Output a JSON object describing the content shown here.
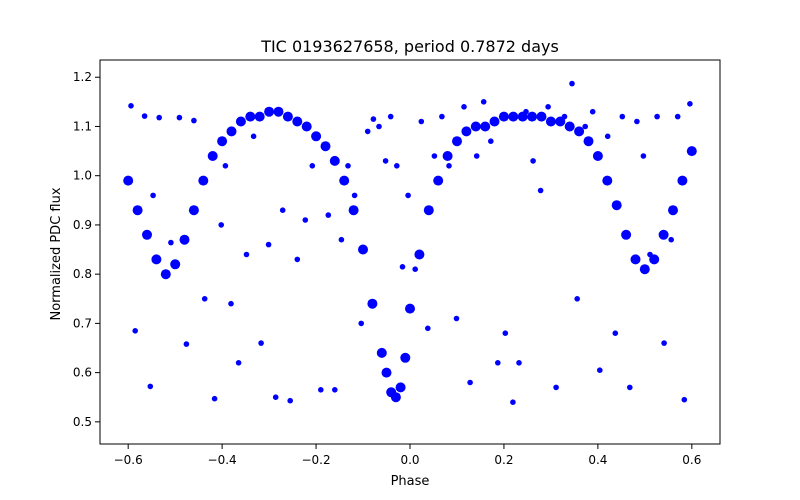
{
  "colors": {
    "points": "#0000ff",
    "axes": "#000000",
    "background": "#ffffff"
  },
  "chart_data": {
    "type": "scatter",
    "title": "TIC 0193627658, period 0.7872 days",
    "xlabel": "Phase",
    "ylabel": "Normalized PDC flux",
    "xlim": [
      -0.66,
      0.66
    ],
    "ylim": [
      0.455,
      1.235
    ],
    "grid": false,
    "legend": "none",
    "x_ticks": [
      -0.6,
      -0.4,
      -0.2,
      0.0,
      0.2,
      0.4,
      0.6
    ],
    "x_tick_labels": [
      "−0.6",
      "−0.4",
      "−0.2",
      "0.0",
      "0.2",
      "0.4",
      "0.6"
    ],
    "y_ticks": [
      0.5,
      0.6,
      0.7,
      0.8,
      0.9,
      1.0,
      1.1,
      1.2
    ],
    "y_tick_labels": [
      "0.5",
      "0.6",
      "0.7",
      "0.8",
      "0.9",
      "1.0",
      "1.1",
      "1.2"
    ],
    "series": [
      {
        "marker": "circle",
        "color": "#0000ff",
        "x": [
          -0.6,
          -0.58,
          -0.56,
          -0.54,
          -0.52,
          -0.5,
          -0.48,
          -0.46,
          -0.44,
          -0.42,
          -0.4,
          -0.38,
          -0.36,
          -0.34,
          -0.32,
          -0.3,
          -0.28,
          -0.26,
          -0.24,
          -0.22,
          -0.2,
          -0.18,
          -0.16,
          -0.14,
          -0.12,
          -0.1,
          -0.08,
          -0.06,
          -0.05,
          -0.04,
          -0.03,
          -0.02,
          -0.01,
          0.0,
          0.02,
          0.04,
          0.06,
          0.08,
          0.1,
          0.12,
          0.14,
          0.16,
          0.18,
          0.2,
          0.22,
          0.24,
          0.26,
          0.28,
          0.3,
          0.32,
          0.34,
          0.36,
          0.38,
          0.4,
          0.42,
          0.44,
          0.46,
          0.48,
          0.5,
          0.52,
          0.54,
          0.56,
          0.58,
          0.6
        ],
        "y": [
          0.99,
          0.93,
          0.88,
          0.83,
          0.8,
          0.82,
          0.87,
          0.93,
          0.99,
          1.04,
          1.07,
          1.09,
          1.11,
          1.12,
          1.12,
          1.13,
          1.13,
          1.12,
          1.11,
          1.1,
          1.08,
          1.06,
          1.03,
          0.99,
          0.93,
          0.85,
          0.74,
          0.64,
          0.6,
          0.56,
          0.55,
          0.57,
          0.63,
          0.73,
          0.84,
          0.93,
          0.99,
          1.04,
          1.07,
          1.09,
          1.1,
          1.1,
          1.11,
          1.12,
          1.12,
          1.12,
          1.12,
          1.12,
          1.11,
          1.11,
          1.1,
          1.09,
          1.07,
          1.04,
          0.99,
          0.94,
          0.88,
          0.83,
          0.81,
          0.83,
          0.88,
          0.93,
          0.99,
          1.05
        ]
      },
      {
        "marker": "circle",
        "color": "#0000ff",
        "x": [
          -0.594,
          -0.585,
          -0.565,
          -0.553,
          -0.547,
          -0.534,
          -0.509,
          -0.491,
          -0.476,
          -0.46,
          -0.437,
          -0.416,
          -0.402,
          -0.393,
          -0.381,
          -0.365,
          -0.348,
          -0.333,
          -0.317,
          -0.301,
          -0.286,
          -0.271,
          -0.255,
          -0.24,
          -0.223,
          -0.208,
          -0.19,
          -0.174,
          -0.16,
          -0.146,
          -0.132,
          -0.118,
          -0.104,
          -0.09,
          -0.078,
          -0.066,
          -0.052,
          -0.041,
          -0.028,
          -0.016,
          -0.004,
          0.011,
          0.024,
          0.038,
          0.052,
          0.068,
          0.083,
          0.099,
          0.115,
          0.128,
          0.142,
          0.157,
          0.172,
          0.187,
          0.203,
          0.219,
          0.232,
          0.247,
          0.262,
          0.278,
          0.294,
          0.311,
          0.329,
          0.345,
          0.356,
          0.373,
          0.389,
          0.404,
          0.421,
          0.437,
          0.452,
          0.468,
          0.483,
          0.497,
          0.511,
          0.526,
          0.541,
          0.556,
          0.57,
          0.584,
          0.596
        ],
        "y": [
          1.142,
          0.685,
          1.121,
          0.572,
          0.96,
          1.118,
          0.864,
          1.118,
          0.658,
          1.112,
          0.75,
          0.547,
          0.9,
          1.02,
          0.74,
          0.62,
          0.84,
          1.08,
          0.66,
          0.86,
          0.55,
          0.93,
          0.543,
          0.83,
          0.91,
          1.02,
          0.565,
          0.92,
          0.565,
          0.87,
          1.02,
          0.96,
          0.7,
          1.09,
          1.115,
          1.1,
          1.03,
          1.12,
          1.02,
          0.815,
          0.96,
          0.81,
          1.11,
          0.69,
          1.04,
          1.12,
          1.02,
          0.71,
          1.14,
          0.58,
          1.04,
          1.15,
          1.07,
          0.62,
          0.68,
          0.54,
          0.62,
          1.13,
          1.03,
          0.97,
          1.14,
          0.57,
          1.12,
          1.187,
          0.75,
          1.1,
          1.13,
          0.605,
          1.08,
          0.68,
          1.12,
          0.57,
          1.11,
          1.04,
          0.84,
          1.12,
          0.66,
          0.87,
          1.12,
          0.545,
          1.146
        ]
      }
    ]
  }
}
